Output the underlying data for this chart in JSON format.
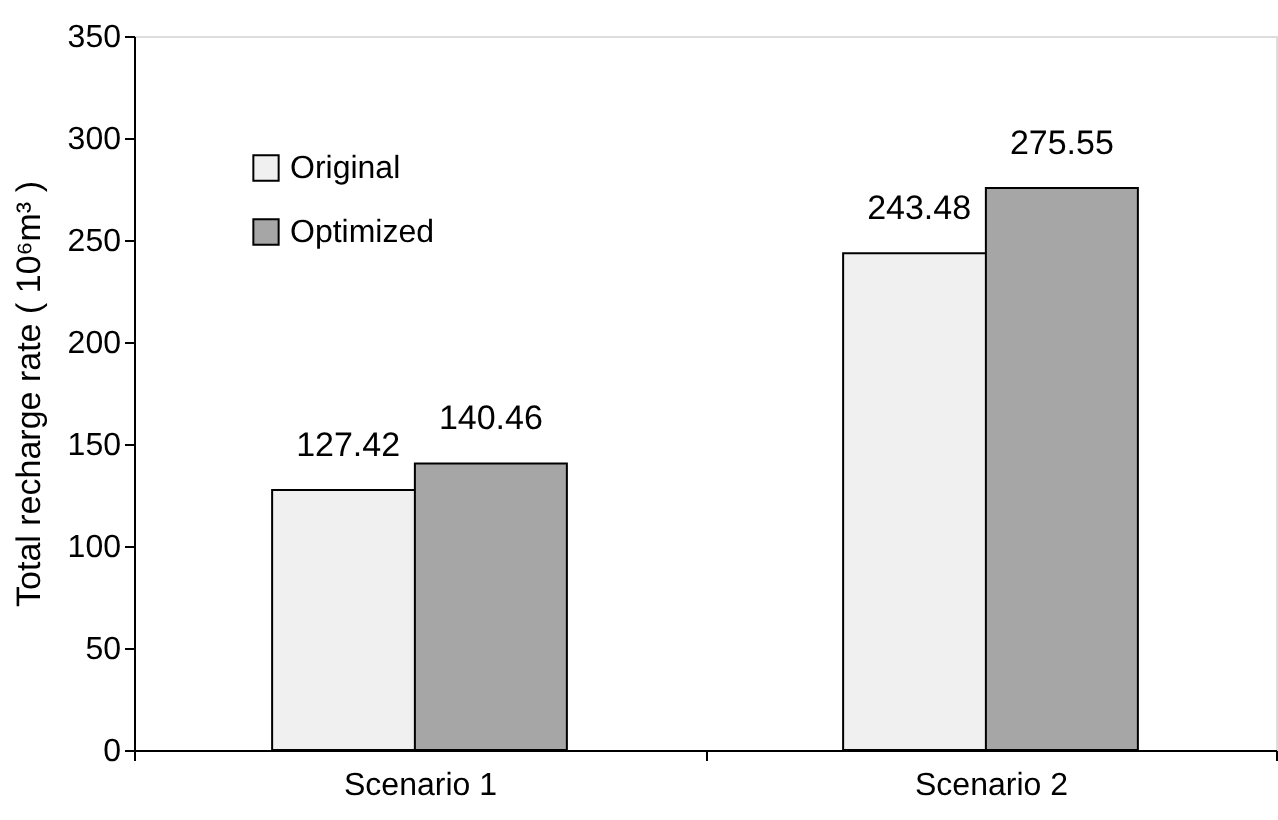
{
  "chart_data": {
    "type": "bar",
    "ylabel": "Total recharge rate ( 10⁶m³ )",
    "categories": [
      "Scenario 1",
      "Scenario 2"
    ],
    "series": [
      {
        "name": "Original",
        "color": "#f0f0f0",
        "values": [
          127.42,
          243.48
        ]
      },
      {
        "name": "Optimized",
        "color": "#a6a6a6",
        "values": [
          140.46,
          275.55
        ]
      }
    ],
    "ylim": [
      0,
      350
    ],
    "yticks": [
      0,
      50,
      100,
      150,
      200,
      250,
      300,
      350
    ],
    "grid": false,
    "legend": "top left",
    "data_labels": true
  }
}
